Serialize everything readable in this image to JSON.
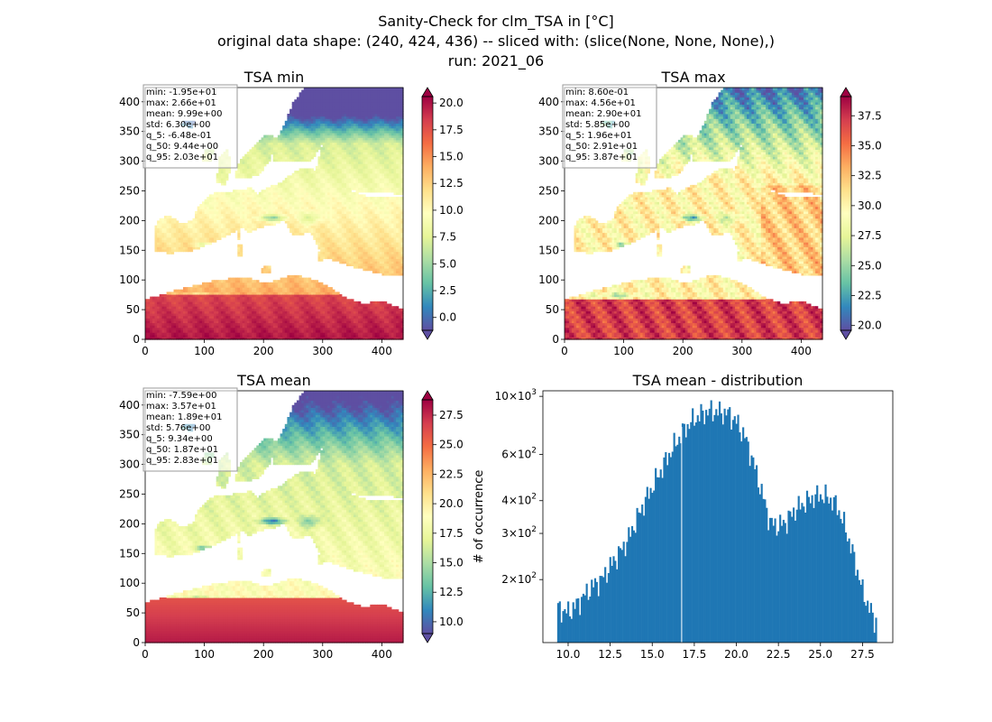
{
  "figure": {
    "title_line1": "Sanity-Check for clm_TSA in [°C]",
    "title_line2": "original data shape: (240, 424, 436) -- sliced with: (slice(None, None, None),)",
    "title_line3": "run: 2021_06"
  },
  "chart_data": [
    {
      "type": "heatmap",
      "title": "TSA min",
      "x_ticks": [
        "0",
        "100",
        "200",
        "300",
        "400"
      ],
      "y_ticks": [
        "0",
        "50",
        "100",
        "150",
        "200",
        "250",
        "300",
        "350",
        "400"
      ],
      "xlim": [
        0,
        436
      ],
      "ylim": [
        0,
        424
      ],
      "colormap": "Spectral_r",
      "colorbar_ticks": [
        "0.0",
        "2.5",
        "5.0",
        "7.5",
        "10.0",
        "12.5",
        "15.0",
        "17.5",
        "20.0"
      ],
      "colorbar_range": [
        -1.2,
        20.6
      ],
      "stats": [
        "min: -1.95e+01",
        "max: 2.66e+01",
        "mean: 9.99e+00",
        "std: 6.30e+00",
        "q_5: -6.48e-01",
        "q_50: 9.44e+00",
        "q_95: 2.03e+01"
      ]
    },
    {
      "type": "heatmap",
      "title": "TSA max",
      "x_ticks": [
        "0",
        "100",
        "200",
        "300",
        "400"
      ],
      "y_ticks": [
        "0",
        "50",
        "100",
        "150",
        "200",
        "250",
        "300",
        "350",
        "400"
      ],
      "xlim": [
        0,
        436
      ],
      "ylim": [
        0,
        424
      ],
      "colormap": "Spectral_r",
      "colorbar_ticks": [
        "20.0",
        "22.5",
        "25.0",
        "27.5",
        "30.0",
        "32.5",
        "35.0",
        "37.5"
      ],
      "colorbar_range": [
        19.6,
        39.1
      ],
      "stats": [
        "min: 8.60e-01",
        "max: 4.56e+01",
        "mean: 2.90e+01",
        "std: 5.85e+00",
        "q_5: 1.96e+01",
        "q_50: 2.91e+01",
        "q_95: 3.87e+01"
      ]
    },
    {
      "type": "heatmap",
      "title": "TSA mean",
      "x_ticks": [
        "0",
        "100",
        "200",
        "300",
        "400"
      ],
      "y_ticks": [
        "0",
        "50",
        "100",
        "150",
        "200",
        "250",
        "300",
        "350",
        "400"
      ],
      "xlim": [
        0,
        436
      ],
      "ylim": [
        0,
        424
      ],
      "colormap": "Spectral_r",
      "colorbar_ticks": [
        "10.0",
        "12.5",
        "15.0",
        "17.5",
        "20.0",
        "22.5",
        "25.0",
        "27.5"
      ],
      "colorbar_range": [
        9.0,
        28.8
      ],
      "stats": [
        "min: -7.59e+00",
        "max: 3.57e+01",
        "mean: 1.89e+01",
        "std: 5.76e+00",
        "q_5: 9.34e+00",
        "q_50: 1.87e+01",
        "q_95: 2.83e+01"
      ]
    },
    {
      "type": "bar",
      "title": "TSA mean - distribution",
      "ylabel": "# of occurrence",
      "y_scale": "log",
      "ylim": [
        115,
        1050
      ],
      "xlim": [
        8.5,
        29.3
      ],
      "x_ticks": [
        "10.0",
        "12.5",
        "15.0",
        "17.5",
        "20.0",
        "22.5",
        "25.0",
        "27.5"
      ],
      "y_ticks": [
        {
          "value": 200,
          "base": "2",
          "exp": "2"
        },
        {
          "value": 300,
          "base": "3",
          "exp": "2"
        },
        {
          "value": 400,
          "base": "4",
          "exp": "2"
        },
        {
          "value": 600,
          "base": "6",
          "exp": "2"
        },
        {
          "value": 1000,
          "base": "10",
          "exp": "3"
        }
      ],
      "bin_start": 9.35,
      "bin_width": 0.1,
      "bar_color": "#1f77b4",
      "hist_anchors": [
        [
          9.4,
          155
        ],
        [
          10.0,
          150
        ],
        [
          10.5,
          160
        ],
        [
          11.0,
          175
        ],
        [
          11.5,
          190
        ],
        [
          12.0,
          200
        ],
        [
          12.5,
          225
        ],
        [
          13.0,
          250
        ],
        [
          13.5,
          280
        ],
        [
          14.0,
          330
        ],
        [
          14.5,
          390
        ],
        [
          15.0,
          450
        ],
        [
          15.5,
          520
        ],
        [
          16.0,
          600
        ],
        [
          16.5,
          680
        ],
        [
          17.0,
          760
        ],
        [
          17.5,
          820
        ],
        [
          18.0,
          860
        ],
        [
          18.5,
          880
        ],
        [
          19.0,
          870
        ],
        [
          19.5,
          860
        ],
        [
          20.0,
          800
        ],
        [
          20.5,
          700
        ],
        [
          21.0,
          560
        ],
        [
          21.5,
          430
        ],
        [
          22.0,
          330
        ],
        [
          22.5,
          320
        ],
        [
          23.0,
          335
        ],
        [
          23.5,
          370
        ],
        [
          24.0,
          390
        ],
        [
          24.5,
          410
        ],
        [
          25.0,
          420
        ],
        [
          25.5,
          410
        ],
        [
          26.0,
          380
        ],
        [
          26.5,
          310
        ],
        [
          27.0,
          240
        ],
        [
          27.5,
          180
        ],
        [
          28.0,
          150
        ],
        [
          28.2,
          140
        ]
      ]
    }
  ]
}
